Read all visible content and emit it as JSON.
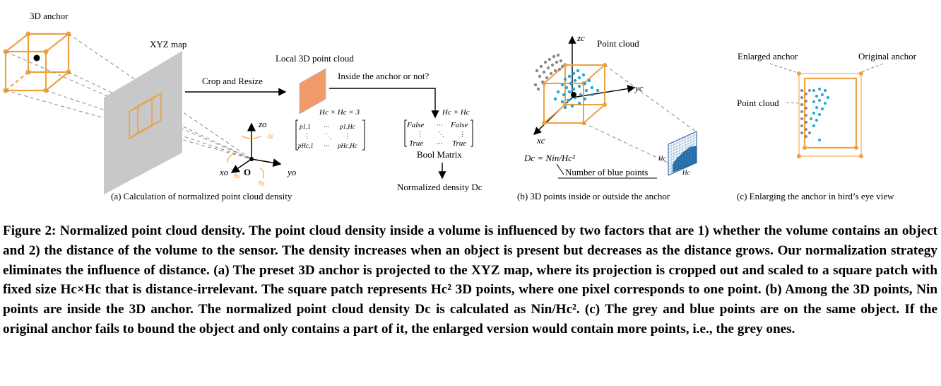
{
  "panel_a": {
    "label_3d_anchor": "3D anchor",
    "label_xyz_map": "XYZ map",
    "label_local_cloud": "Local 3D point cloud",
    "label_crop": "Crop and Resize",
    "label_inside": "Inside the anchor or not?",
    "label_dims": "Hc × Hc × 3",
    "label_dims2": "Hc × Hc",
    "m_p11": "p1,1",
    "m_p1h": "p1,Hc",
    "m_ph1": "pHc,1",
    "m_phh": "pHc,Hc",
    "m_dots": "···",
    "m_vdots": "⋮",
    "m_ddots": "⋱",
    "b_false1": "False",
    "b_false2": "False",
    "b_true1": "True",
    "b_true2": "True",
    "label_bool": "Bool Matrix",
    "label_norm": "Normalized density Dc",
    "axis_z": "zo",
    "axis_x": "xo",
    "axis_y": "yo",
    "axis_o": "O",
    "theta_z": "θz",
    "theta_x": "θx",
    "theta_y": "θy",
    "caption": "(a) Calculation of normalized point cloud density"
  },
  "panel_b": {
    "label_cloud": "Point cloud",
    "axis_z": "zc",
    "axis_y": "yc",
    "axis_x": "xc",
    "formula": "Dc = Nin/Hc²",
    "label_blue": "Number of blue points",
    "label_hc1": "Hc",
    "label_hc2": "Hc",
    "caption": "(b) 3D points inside or outside the anchor"
  },
  "panel_c": {
    "label_enlarged": "Enlarged anchor",
    "label_original": "Original anchor",
    "label_cloud": "Point cloud",
    "caption": "(c) Enlarging the anchor in bird’s eye view"
  },
  "caption": {
    "text": "Figure 2: Normalized point cloud density. The point cloud density inside a volume is influenced by two factors that are 1) whether the volume contains an object and 2) the distance of the volume to the sensor. The density increases when an object is present but decreases as the distance grows. Our normalization strategy eliminates the influence of distance. (a) The preset 3D anchor is projected to the XYZ map, where its projection is cropped out and scaled to a square patch with fixed size Hc×Hc that is distance-irrelevant. The square patch represents Hc² 3D points, where one pixel corresponds to one point. (b) Among the 3D points, Nin points are inside the 3D anchor. The normalized point cloud density Dc is calculated as Nin/Hc². (c) The grey and blue points are on the same object. If the original anchor fails to bound the object and only contains a part of it, the enlarged version would contain more points, i.e., the grey ones."
  },
  "colors": {
    "orange": "#f0a040",
    "blue": "#1fa8d8",
    "grey": "#8a8a8a",
    "darkblue": "#1a4f8a"
  }
}
